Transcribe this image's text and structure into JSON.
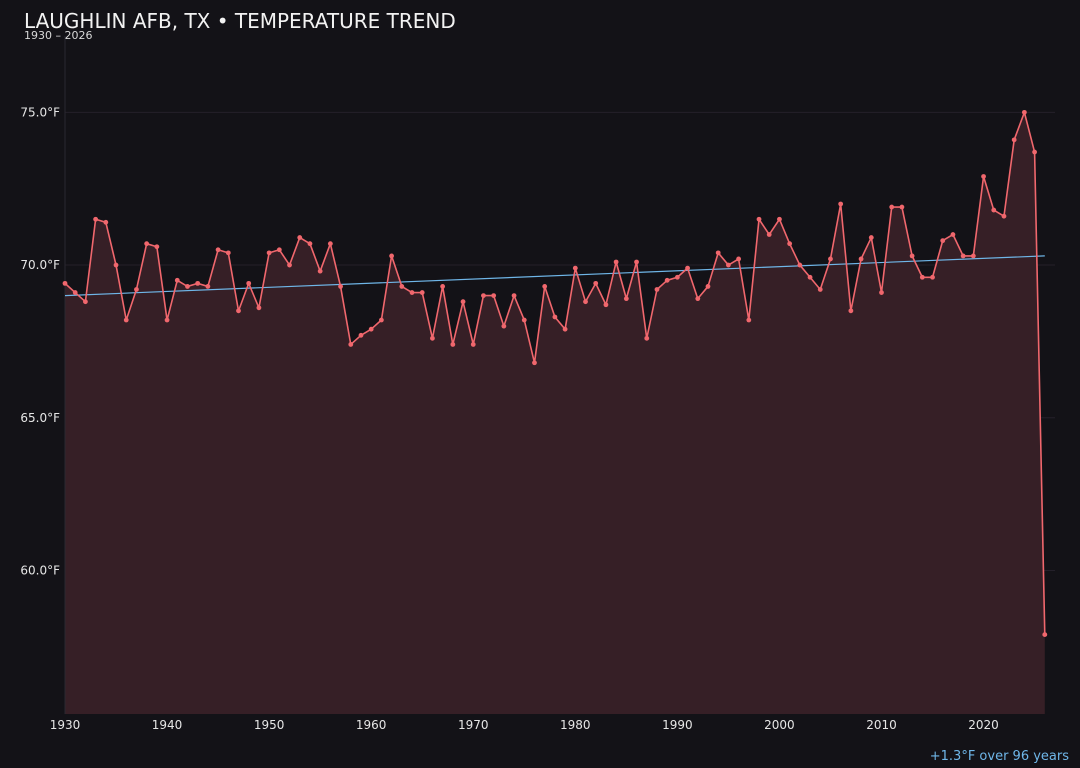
{
  "header": {
    "title": "LAUGHLIN AFB, TX • TEMPERATURE TREND",
    "subtitle": "1930 – 2026"
  },
  "annotation": "+1.3°F over 96 years",
  "colors": {
    "background": "#131217",
    "line": "#f0676d",
    "fill": "#361f26",
    "trend": "#6fb6e8",
    "annotation": "#6fb6e8"
  },
  "chart_data": {
    "type": "line",
    "title": "LAUGHLIN AFB, TX • TEMPERATURE TREND",
    "subtitle": "1930 – 2026",
    "xlabel": "",
    "ylabel": "",
    "xlim": [
      1930,
      2027
    ],
    "ylim": [
      55.3,
      77.5
    ],
    "grid": true,
    "y_ticks": [
      60.0,
      65.0,
      70.0,
      75.0
    ],
    "y_tick_labels": [
      "60.0°F",
      "65.0°F",
      "70.0°F",
      "75.0°F"
    ],
    "x_ticks": [
      1930,
      1940,
      1950,
      1960,
      1970,
      1980,
      1990,
      2000,
      2010,
      2020
    ],
    "x_tick_labels": [
      "1930",
      "1940",
      "1950",
      "1960",
      "1970",
      "1980",
      "1990",
      "2000",
      "2010",
      "2020"
    ],
    "series": [
      {
        "x": [
          1930,
          1931,
          1932,
          1933,
          1934,
          1935,
          1936,
          1937,
          1938,
          1939,
          1940,
          1941,
          1942,
          1943,
          1944,
          1945,
          1946,
          1947,
          1948,
          1949,
          1950,
          1951,
          1952,
          1953,
          1954,
          1955,
          1956,
          1957,
          1958,
          1959,
          1960,
          1961,
          1962,
          1963,
          1964,
          1965,
          1966,
          1967,
          1968,
          1969,
          1970,
          1971,
          1972,
          1973,
          1974,
          1975,
          1976,
          1977,
          1978,
          1979,
          1980,
          1981,
          1982,
          1983,
          1984,
          1985,
          1986,
          1987,
          1988,
          1989,
          1990,
          1991,
          1992,
          1993,
          1994,
          1995,
          1996,
          1997,
          1998,
          1999,
          2000,
          2001,
          2002,
          2003,
          2004,
          2005,
          2006,
          2007,
          2008,
          2009,
          2010,
          2011,
          2012,
          2013,
          2014,
          2015,
          2016,
          2017,
          2018,
          2019,
          2020,
          2021,
          2022,
          2023,
          2024,
          2025,
          2026
        ],
        "values": [
          69.4,
          69.1,
          68.8,
          71.5,
          71.4,
          70.0,
          68.2,
          69.2,
          70.7,
          70.6,
          68.2,
          69.5,
          69.3,
          69.4,
          69.3,
          70.5,
          70.4,
          68.5,
          69.4,
          68.6,
          70.4,
          70.5,
          70.0,
          70.9,
          70.7,
          69.8,
          70.7,
          69.3,
          67.4,
          67.7,
          67.9,
          68.2,
          70.3,
          69.3,
          69.1,
          69.1,
          67.6,
          69.3,
          67.4,
          68.8,
          67.4,
          69.0,
          69.0,
          68.0,
          69.0,
          68.2,
          66.8,
          69.3,
          68.3,
          67.9,
          69.9,
          68.8,
          69.4,
          68.7,
          70.1,
          68.9,
          70.1,
          67.6,
          69.2,
          69.5,
          69.6,
          69.9,
          68.9,
          69.3,
          70.4,
          70.0,
          70.2,
          68.2,
          71.5,
          71.0,
          71.5,
          70.7,
          70.0,
          69.6,
          69.2,
          70.2,
          72.0,
          68.5,
          70.2,
          70.9,
          69.1,
          71.9,
          71.9,
          70.3,
          69.6,
          69.6,
          70.8,
          71.0,
          70.3,
          70.3,
          72.9,
          71.8,
          71.6,
          74.1,
          75.0,
          73.7,
          57.9
        ]
      }
    ],
    "trend": {
      "x": [
        1930,
        2026
      ],
      "values": [
        69.0,
        70.3
      ]
    }
  }
}
